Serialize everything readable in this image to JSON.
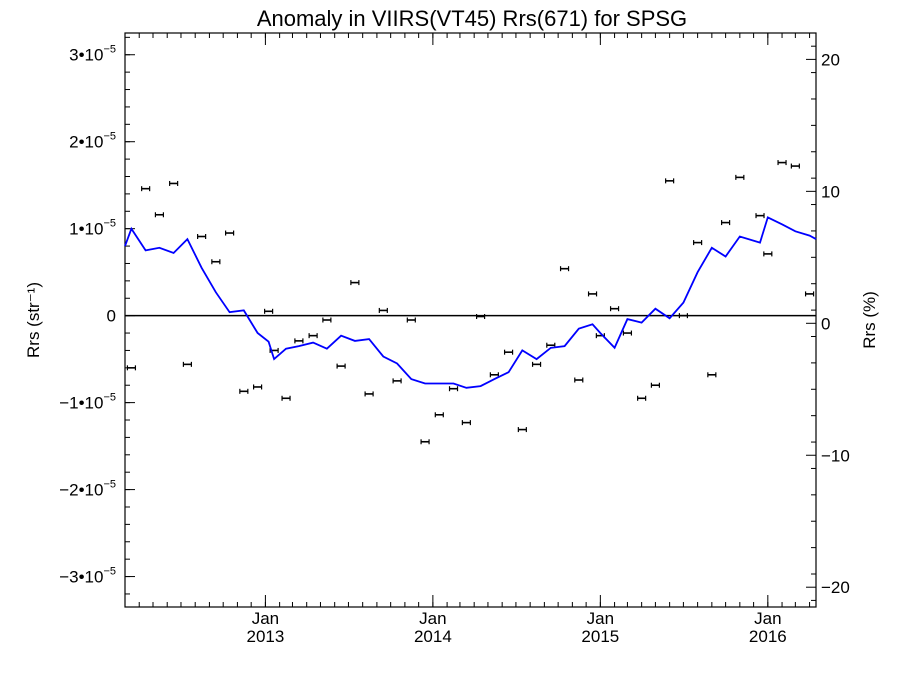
{
  "chart_data": {
    "type": "scatter",
    "title": "Anomaly in VIIRS(VT45) Rrs(671) for SPSG",
    "ylabel": "Rrs (str⁻¹)",
    "y2label": "Rrs (%)",
    "xlabel": "",
    "x_range": [
      "2012-03-01",
      "2016-04-15"
    ],
    "ylim": [
      -3.35e-05,
      3.25e-05
    ],
    "y2lim": [
      -21.5,
      22.0
    ],
    "y_ticks": [
      {
        "value": 3e-05,
        "mantissa": "3•10",
        "exp": "−5"
      },
      {
        "value": 2e-05,
        "mantissa": "2•10",
        "exp": "−5"
      },
      {
        "value": 1e-05,
        "mantissa": "1•10",
        "exp": "−5"
      },
      {
        "value": 0,
        "mantissa": "0",
        "exp": ""
      },
      {
        "value": -1e-05,
        "mantissa": "−1•10",
        "exp": "−5"
      },
      {
        "value": -2e-05,
        "mantissa": "−2•10",
        "exp": "−5"
      },
      {
        "value": -3e-05,
        "mantissa": "−3•10",
        "exp": "−5"
      }
    ],
    "y2_ticks": [
      {
        "value": 20,
        "label": "20"
      },
      {
        "value": 10,
        "label": "10"
      },
      {
        "value": 0,
        "label": "0"
      },
      {
        "value": -10,
        "label": "−10"
      },
      {
        "value": -20,
        "label": "−20"
      }
    ],
    "x_ticks": [
      {
        "date": "2013-01-01",
        "line1": "Jan",
        "line2": "2013"
      },
      {
        "date": "2014-01-01",
        "line1": "Jan",
        "line2": "2014"
      },
      {
        "date": "2015-01-01",
        "line1": "Jan",
        "line2": "2015"
      },
      {
        "date": "2016-01-01",
        "line1": "Jan",
        "line2": "2016"
      }
    ],
    "zero_line": true,
    "grid": false,
    "series": [
      {
        "type": "scatter_errorbar",
        "color": "#000000",
        "points": [
          {
            "x": "2012-03-15",
            "y": -6e-06
          },
          {
            "x": "2012-04-15",
            "y": 1.46e-05
          },
          {
            "x": "2012-05-15",
            "y": 1.16e-05
          },
          {
            "x": "2012-06-15",
            "y": 1.52e-05
          },
          {
            "x": "2012-07-15",
            "y": -5.6e-06
          },
          {
            "x": "2012-08-15",
            "y": 9.1e-06
          },
          {
            "x": "2012-09-15",
            "y": 6.2e-06
          },
          {
            "x": "2012-10-15",
            "y": 9.5e-06
          },
          {
            "x": "2012-11-15",
            "y": -8.7e-06
          },
          {
            "x": "2012-12-15",
            "y": -8.2e-06
          },
          {
            "x": "2013-01-08",
            "y": 5e-07
          },
          {
            "x": "2013-01-20",
            "y": -4e-06
          },
          {
            "x": "2013-02-15",
            "y": -9.5e-06
          },
          {
            "x": "2013-03-15",
            "y": -2.9e-06
          },
          {
            "x": "2013-04-15",
            "y": -2.3e-06
          },
          {
            "x": "2013-05-15",
            "y": -5e-07
          },
          {
            "x": "2013-06-15",
            "y": -5.8e-06
          },
          {
            "x": "2013-07-15",
            "y": 3.8e-06
          },
          {
            "x": "2013-08-15",
            "y": -9e-06
          },
          {
            "x": "2013-09-15",
            "y": 6e-07
          },
          {
            "x": "2013-10-15",
            "y": -7.5e-06
          },
          {
            "x": "2013-11-15",
            "y": -5e-07
          },
          {
            "x": "2013-12-15",
            "y": -1.45e-05
          },
          {
            "x": "2014-01-15",
            "y": -1.14e-05
          },
          {
            "x": "2014-02-15",
            "y": -8.4e-06
          },
          {
            "x": "2014-03-15",
            "y": -1.23e-05
          },
          {
            "x": "2014-04-15",
            "y": -1e-07
          },
          {
            "x": "2014-05-15",
            "y": -6.8e-06
          },
          {
            "x": "2014-06-15",
            "y": -4.2e-06
          },
          {
            "x": "2014-07-15",
            "y": -1.31e-05
          },
          {
            "x": "2014-08-15",
            "y": -5.6e-06
          },
          {
            "x": "2014-09-15",
            "y": -3.4e-06
          },
          {
            "x": "2014-10-15",
            "y": 5.4e-06
          },
          {
            "x": "2014-11-15",
            "y": -7.4e-06
          },
          {
            "x": "2014-12-15",
            "y": 2.5e-06
          },
          {
            "x": "2015-01-01",
            "y": -2.3e-06
          },
          {
            "x": "2015-02-01",
            "y": 8e-07
          },
          {
            "x": "2015-03-01",
            "y": -2e-06
          },
          {
            "x": "2015-04-01",
            "y": -9.5e-06
          },
          {
            "x": "2015-05-01",
            "y": -8e-06
          },
          {
            "x": "2015-06-01",
            "y": 1.55e-05
          },
          {
            "x": "2015-07-01",
            "y": 0.0
          },
          {
            "x": "2015-08-01",
            "y": 8.4e-06
          },
          {
            "x": "2015-09-01",
            "y": -6.8e-06
          },
          {
            "x": "2015-10-01",
            "y": 1.07e-05
          },
          {
            "x": "2015-11-01",
            "y": 1.59e-05
          },
          {
            "x": "2015-12-15",
            "y": 1.15e-05
          },
          {
            "x": "2016-01-01",
            "y": 7.1e-06
          },
          {
            "x": "2016-02-01",
            "y": 1.76e-05
          },
          {
            "x": "2016-03-01",
            "y": 1.72e-05
          },
          {
            "x": "2016-04-01",
            "y": 2.5e-06
          }
        ]
      },
      {
        "type": "line",
        "color": "#0000ff",
        "points": [
          {
            "x": "2012-03-01",
            "y": 8e-06
          },
          {
            "x": "2012-03-15",
            "y": 1e-05
          },
          {
            "x": "2012-04-15",
            "y": 7.5e-06
          },
          {
            "x": "2012-05-15",
            "y": 7.8e-06
          },
          {
            "x": "2012-06-15",
            "y": 7.2e-06
          },
          {
            "x": "2012-07-15",
            "y": 8.8e-06
          },
          {
            "x": "2012-08-15",
            "y": 5.5e-06
          },
          {
            "x": "2012-09-15",
            "y": 2.7e-06
          },
          {
            "x": "2012-10-15",
            "y": 4e-07
          },
          {
            "x": "2012-11-15",
            "y": 6e-07
          },
          {
            "x": "2012-12-15",
            "y": -2e-06
          },
          {
            "x": "2013-01-08",
            "y": -3e-06
          },
          {
            "x": "2013-01-20",
            "y": -5e-06
          },
          {
            "x": "2013-02-15",
            "y": -3.8e-06
          },
          {
            "x": "2013-03-15",
            "y": -3.5e-06
          },
          {
            "x": "2013-04-15",
            "y": -3.1e-06
          },
          {
            "x": "2013-05-15",
            "y": -3.8e-06
          },
          {
            "x": "2013-06-15",
            "y": -2.3e-06
          },
          {
            "x": "2013-07-15",
            "y": -2.9e-06
          },
          {
            "x": "2013-08-15",
            "y": -2.7e-06
          },
          {
            "x": "2013-09-15",
            "y": -4.7e-06
          },
          {
            "x": "2013-10-15",
            "y": -5.5e-06
          },
          {
            "x": "2013-11-15",
            "y": -7.3e-06
          },
          {
            "x": "2013-12-15",
            "y": -7.8e-06
          },
          {
            "x": "2014-01-15",
            "y": -7.8e-06
          },
          {
            "x": "2014-02-15",
            "y": -7.8e-06
          },
          {
            "x": "2014-03-15",
            "y": -8.3e-06
          },
          {
            "x": "2014-04-15",
            "y": -8.1e-06
          },
          {
            "x": "2014-05-15",
            "y": -7.3e-06
          },
          {
            "x": "2014-06-15",
            "y": -6.5e-06
          },
          {
            "x": "2014-07-15",
            "y": -4e-06
          },
          {
            "x": "2014-08-15",
            "y": -5e-06
          },
          {
            "x": "2014-09-15",
            "y": -3.7e-06
          },
          {
            "x": "2014-10-15",
            "y": -3.5e-06
          },
          {
            "x": "2014-11-15",
            "y": -1.5e-06
          },
          {
            "x": "2014-12-15",
            "y": -1e-06
          },
          {
            "x": "2015-01-01",
            "y": -2e-06
          },
          {
            "x": "2015-02-01",
            "y": -3.7e-06
          },
          {
            "x": "2015-03-01",
            "y": -4e-07
          },
          {
            "x": "2015-04-01",
            "y": -8e-07
          },
          {
            "x": "2015-05-01",
            "y": 8e-07
          },
          {
            "x": "2015-06-01",
            "y": -3e-07
          },
          {
            "x": "2015-07-01",
            "y": 1.5e-06
          },
          {
            "x": "2015-08-01",
            "y": 5e-06
          },
          {
            "x": "2015-09-01",
            "y": 7.8e-06
          },
          {
            "x": "2015-10-01",
            "y": 6.8e-06
          },
          {
            "x": "2015-11-01",
            "y": 9.1e-06
          },
          {
            "x": "2015-12-15",
            "y": 8.4e-06
          },
          {
            "x": "2016-01-01",
            "y": 1.13e-05
          },
          {
            "x": "2016-02-01",
            "y": 1.05e-05
          },
          {
            "x": "2016-03-01",
            "y": 9.7e-06
          },
          {
            "x": "2016-04-01",
            "y": 9.2e-06
          },
          {
            "x": "2016-04-15",
            "y": 8.8e-06
          }
        ]
      }
    ]
  }
}
